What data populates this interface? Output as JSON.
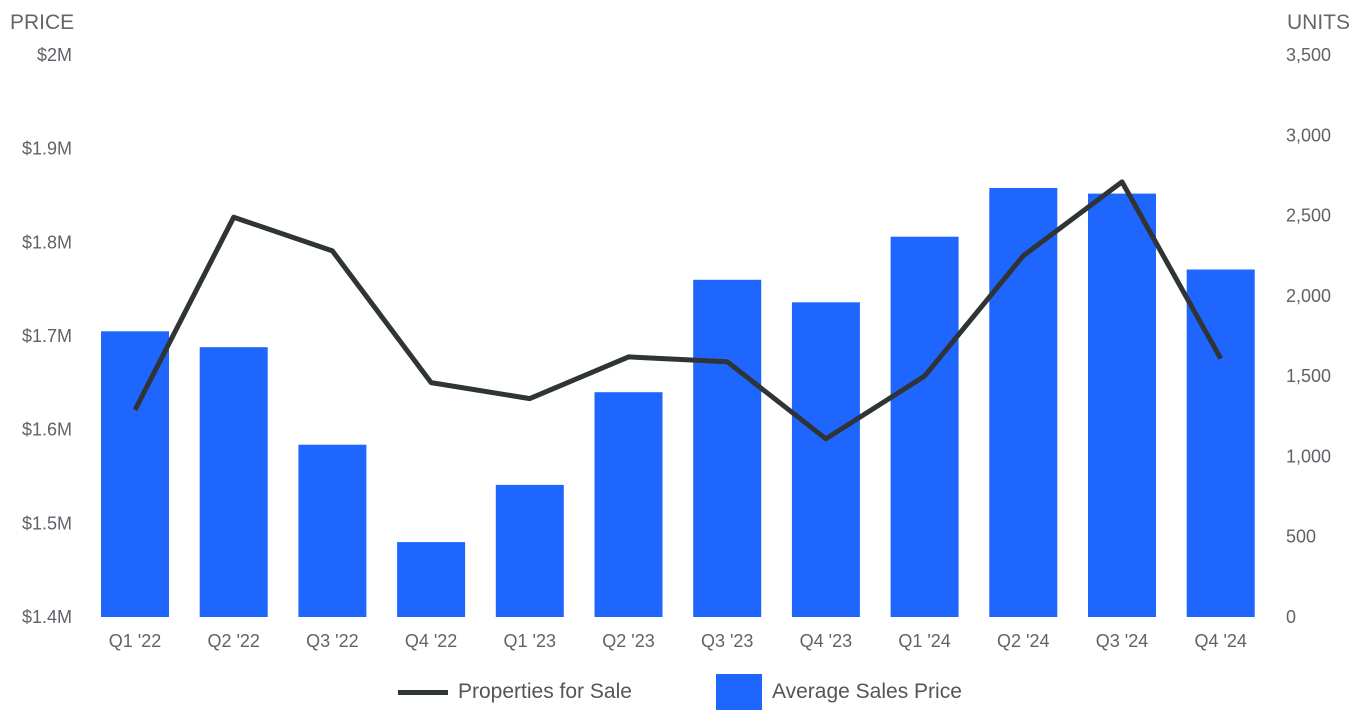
{
  "chart_data": {
    "type": "bar",
    "categories": [
      "Q1 '22",
      "Q2 '22",
      "Q3 '22",
      "Q4 '22",
      "Q1 '23",
      "Q2 '23",
      "Q3 '23",
      "Q4 '23",
      "Q1 '24",
      "Q2 '24",
      "Q3 '24",
      "Q4 '24"
    ],
    "y_left": {
      "label": "PRICE",
      "ylim": [
        1.4,
        2.0
      ],
      "ticks": [
        1.4,
        1.5,
        1.6,
        1.7,
        1.8,
        1.9,
        2.0
      ],
      "tick_labels": [
        "$1.4M",
        "$1.5M",
        "$1.6M",
        "$1.7M",
        "$1.8M",
        "$1.9M",
        "$2M"
      ]
    },
    "y_right": {
      "label": "UNITS",
      "ylim": [
        0,
        3500
      ],
      "ticks": [
        0,
        500,
        1000,
        1500,
        2000,
        2500,
        3000,
        3500
      ],
      "tick_labels": [
        "0",
        "500",
        "1,000",
        "1,500",
        "2,000",
        "2,500",
        "3,000",
        "3,500"
      ]
    },
    "series": [
      {
        "name": "Average Sales Price",
        "type": "bar",
        "axis": "left",
        "color": "#1f66ff",
        "values": [
          1.705,
          1.688,
          1.584,
          1.48,
          1.541,
          1.64,
          1.76,
          1.736,
          1.806,
          1.858,
          1.852,
          1.771
        ]
      },
      {
        "name": "Properties for Sale",
        "type": "line",
        "axis": "right",
        "color": "#2f3437",
        "values": [
          1290,
          2490,
          2280,
          1460,
          1360,
          1620,
          1590,
          1110,
          1500,
          2250,
          2710,
          1610
        ]
      }
    ],
    "grid": false,
    "legend_position": "bottom"
  }
}
